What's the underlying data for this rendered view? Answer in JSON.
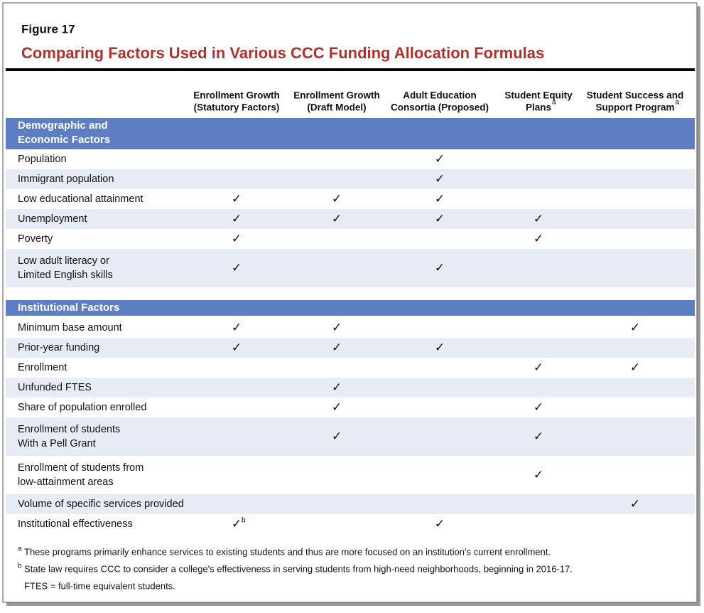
{
  "figure_label": "Figure 17",
  "title": "Comparing Factors Used in Various CCC Funding Allocation Formulas",
  "columns": [
    {
      "lines": [
        "Enrollment Growth",
        "(Statutory Factors)"
      ]
    },
    {
      "lines": [
        "Enrollment Growth",
        "(Draft Model)"
      ]
    },
    {
      "lines": [
        "Adult Education",
        "Consortia (Proposed)"
      ]
    },
    {
      "lines": [
        "Student Equity",
        "Plans"
      ],
      "sup": "a"
    },
    {
      "lines": [
        "Student Success and",
        "Support Program"
      ],
      "sup": "a"
    }
  ],
  "sections": [
    {
      "heading": [
        "Demographic and",
        "Economic Factors"
      ],
      "rows": [
        {
          "label": [
            "Population"
          ],
          "cells": [
            null,
            null,
            "✓",
            null,
            null
          ]
        },
        {
          "label": [
            "Immigrant population"
          ],
          "cells": [
            null,
            null,
            "✓",
            null,
            null
          ]
        },
        {
          "label": [
            "Low educational attainment"
          ],
          "cells": [
            "✓",
            "✓",
            "✓",
            null,
            null
          ]
        },
        {
          "label": [
            "Unemployment"
          ],
          "cells": [
            "✓",
            "✓",
            "✓",
            "✓",
            null
          ]
        },
        {
          "label": [
            "Poverty"
          ],
          "cells": [
            "✓",
            null,
            null,
            "✓",
            null
          ]
        },
        {
          "label": [
            "Low adult literacy or",
            "Limited English skills"
          ],
          "cells": [
            "✓",
            null,
            "✓",
            null,
            null
          ]
        }
      ]
    },
    {
      "heading": [
        "Institutional Factors"
      ],
      "rows": [
        {
          "label": [
            "Minimum base amount"
          ],
          "cells": [
            "✓",
            "✓",
            null,
            null,
            "✓"
          ]
        },
        {
          "label": [
            "Prior-year funding"
          ],
          "cells": [
            "✓",
            "✓",
            "✓",
            null,
            null
          ]
        },
        {
          "label": [
            "Enrollment"
          ],
          "cells": [
            null,
            null,
            null,
            "✓",
            "✓"
          ]
        },
        {
          "label": [
            "Unfunded FTES"
          ],
          "cells": [
            null,
            "✓",
            null,
            null,
            null
          ]
        },
        {
          "label": [
            "Share of population enrolled"
          ],
          "cells": [
            null,
            "✓",
            null,
            "✓",
            null
          ]
        },
        {
          "label": [
            "Enrollment of students",
            "With a Pell Grant"
          ],
          "cells": [
            null,
            "✓",
            null,
            "✓",
            null
          ]
        },
        {
          "label": [
            "Enrollment of students from",
            "low-attainment areas"
          ],
          "cells": [
            null,
            null,
            null,
            "✓",
            null
          ]
        },
        {
          "label": [
            "Volume of specific services provided"
          ],
          "cells": [
            null,
            null,
            null,
            null,
            "✓"
          ]
        },
        {
          "label": [
            "Institutional effectiveness"
          ],
          "cells": [
            {
              "mark": "✓",
              "sup": "b"
            },
            null,
            "✓",
            null,
            null
          ]
        }
      ]
    }
  ],
  "footnotes": [
    {
      "marker": "a",
      "text": "These programs primarily enhance services to existing students and thus are more focused on an institution's current enrollment."
    },
    {
      "marker": "b",
      "text": "State law requires CCC to consider a college's effectiveness in serving students from high-need neighborhoods, beginning in 2016-17."
    }
  ],
  "abbreviation": "FTES = full-time equivalent students."
}
